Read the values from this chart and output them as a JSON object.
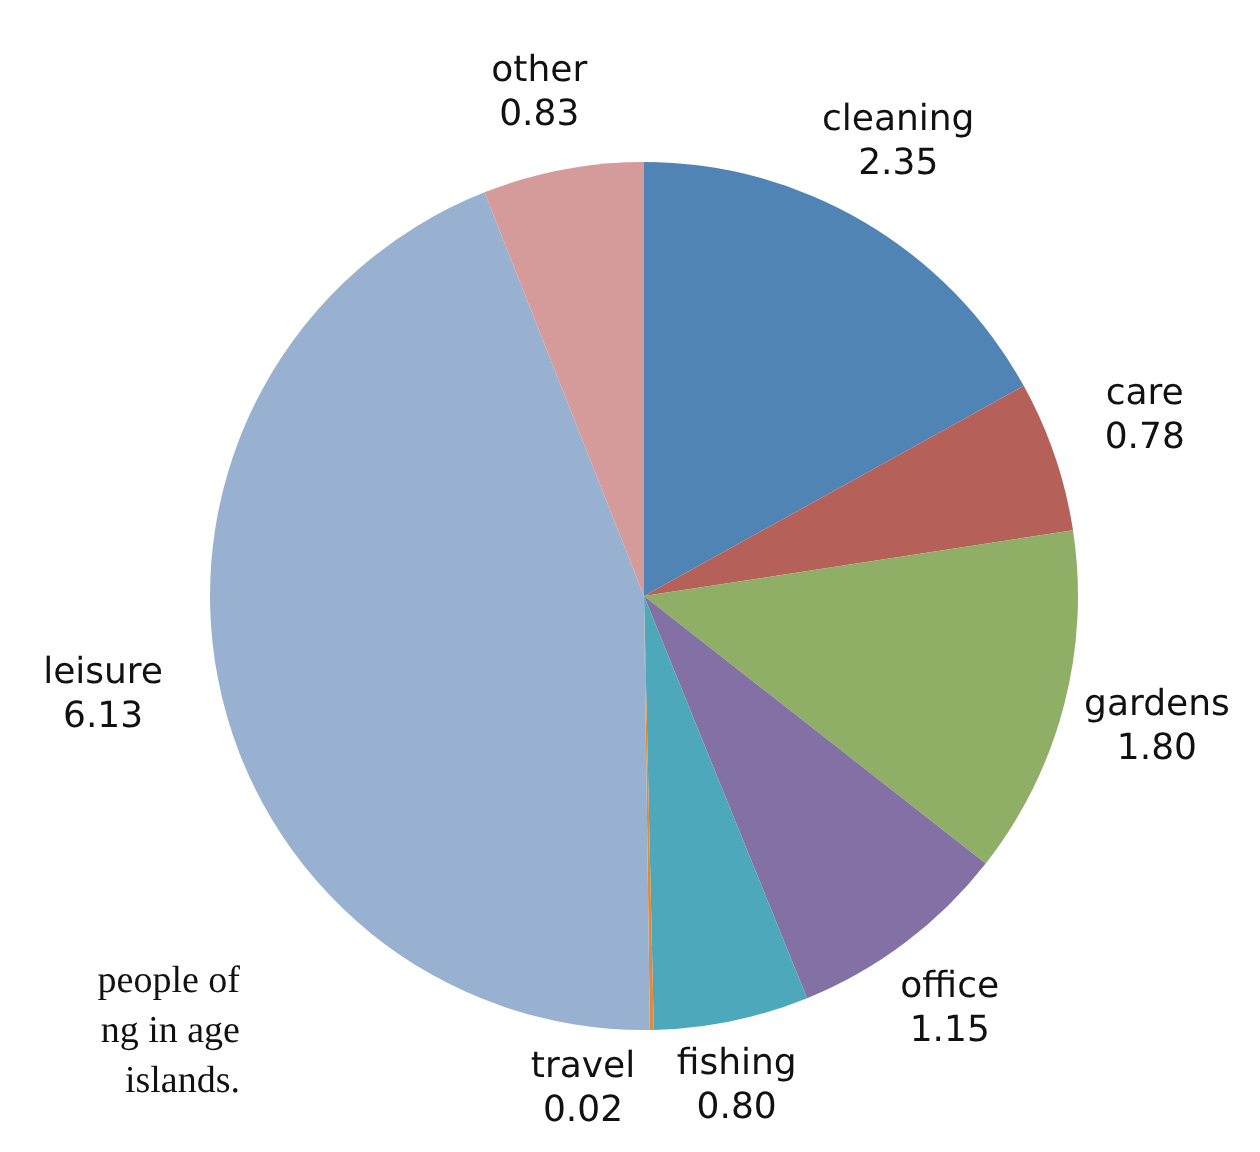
{
  "chart_data": {
    "type": "pie",
    "categories": [
      "cleaning",
      "care",
      "gardens",
      "office",
      "fishing",
      "travel",
      "leisure",
      "other"
    ],
    "values": [
      2.35,
      0.78,
      1.8,
      1.15,
      0.8,
      0.02,
      6.13,
      0.83
    ],
    "value_labels": [
      "2.35",
      "0.78",
      "1.80",
      "1.15",
      "0.80",
      "0.02",
      "6.13",
      "0.83"
    ],
    "colors": [
      "#5084b4",
      "#b6605a",
      "#8fae66",
      "#8370a4",
      "#4ea8bb",
      "#e08a3c",
      "#98b1d1",
      "#d49b9a"
    ],
    "annotations": [
      "people of",
      "ng in age",
      "islands."
    ]
  }
}
